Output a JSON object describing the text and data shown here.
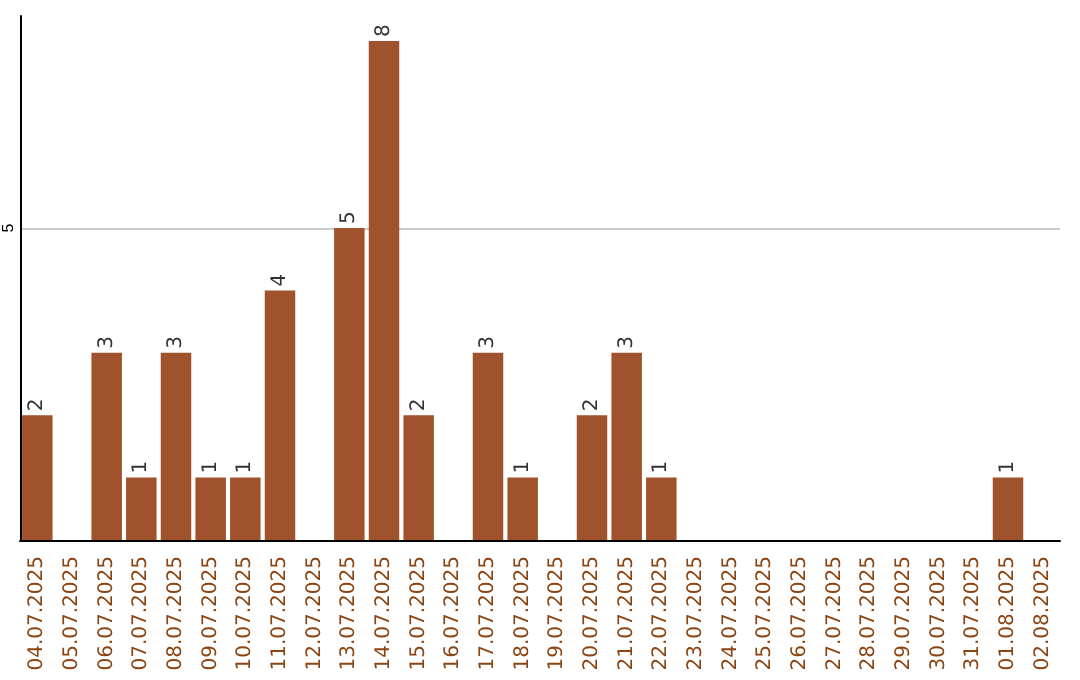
{
  "chart_data": {
    "type": "bar",
    "categories": [
      "04.07.2025",
      "05.07.2025",
      "06.07.2025",
      "07.07.2025",
      "08.07.2025",
      "09.07.2025",
      "10.07.2025",
      "11.07.2025",
      "12.07.2025",
      "13.07.2025",
      "14.07.2025",
      "15.07.2025",
      "16.07.2025",
      "17.07.2025",
      "18.07.2025",
      "19.07.2025",
      "20.07.2025",
      "21.07.2025",
      "22.07.2025",
      "23.07.2025",
      "24.07.2025",
      "25.07.2025",
      "26.07.2025",
      "27.07.2025",
      "28.07.2025",
      "29.07.2025",
      "30.07.2025",
      "31.07.2025",
      "01.08.2025",
      "02.08.2025"
    ],
    "values": [
      2,
      0,
      3,
      1,
      3,
      1,
      1,
      4,
      0,
      5,
      8,
      2,
      0,
      3,
      1,
      0,
      2,
      3,
      1,
      0,
      0,
      0,
      0,
      0,
      0,
      0,
      0,
      0,
      1,
      0
    ],
    "value_labels": [
      "2",
      null,
      "3",
      "1",
      "3",
      "1",
      "1",
      "4",
      null,
      "5",
      "8",
      "2",
      null,
      "3",
      "1",
      null,
      "2",
      "3",
      "1",
      null,
      null,
      null,
      null,
      null,
      null,
      null,
      null,
      null,
      "1",
      null
    ],
    "color": "#a0522d",
    "ylim": [
      0,
      8.4
    ],
    "yticks": [
      5
    ],
    "grid": "y"
  }
}
